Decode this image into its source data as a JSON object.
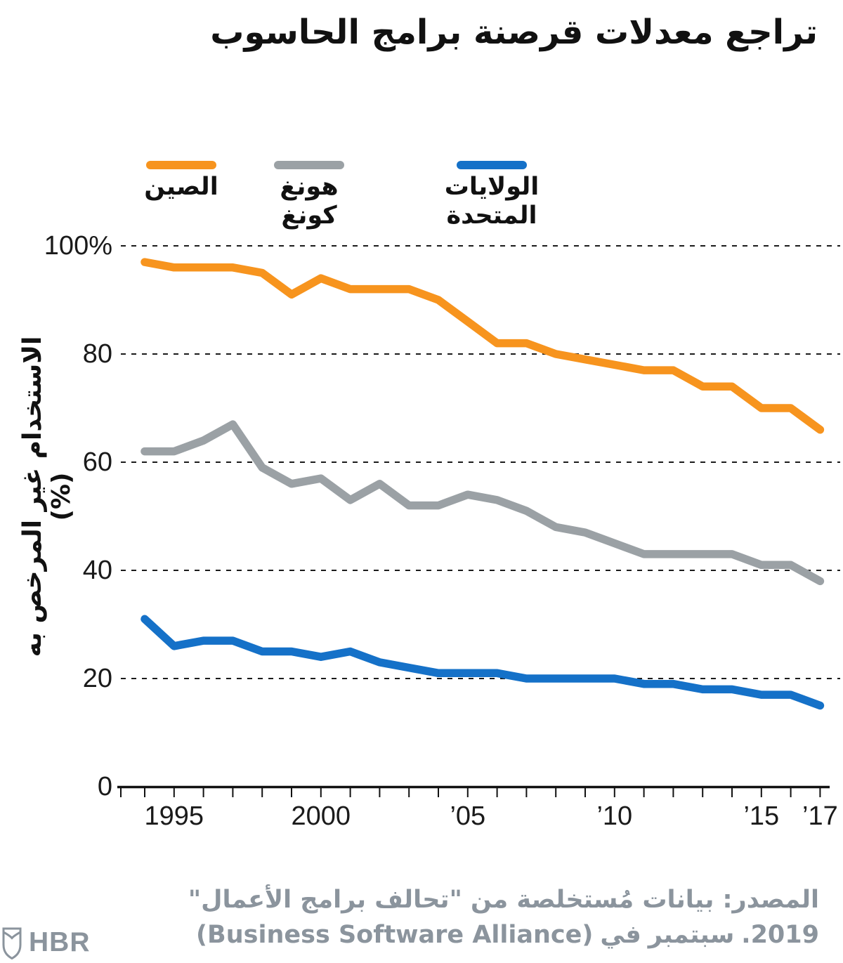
{
  "title": "تراجع معدلات قرصنة برامج الحاسوب",
  "legend": {
    "items": [
      {
        "id": "china",
        "label": "الصين",
        "color": "#F7941E"
      },
      {
        "id": "hong-kong",
        "label": "هونغ كونغ",
        "color": "#9BA1A5"
      },
      {
        "id": "united-states",
        "label": "الولايات المتحدة",
        "color": "#1571C8"
      }
    ]
  },
  "y_axis": {
    "title": "الاستخدام غير المرخص به (%)",
    "ticks": [
      {
        "value": 100,
        "label": "100%"
      },
      {
        "value": 80,
        "label": "80"
      },
      {
        "value": 60,
        "label": "60"
      },
      {
        "value": 40,
        "label": "40"
      },
      {
        "value": 20,
        "label": "20"
      },
      {
        "value": 0,
        "label": "0"
      }
    ]
  },
  "x_axis": {
    "ticks": [
      {
        "year": 1995,
        "label": "1995"
      },
      {
        "year": 2000,
        "label": "2000"
      },
      {
        "year": 2005,
        "label": "’05"
      },
      {
        "year": 2010,
        "label": "’10"
      },
      {
        "year": 2015,
        "label": "’15"
      },
      {
        "year": 2017,
        "label": "’17"
      }
    ]
  },
  "source": {
    "line1": "المصدر: بيانات مُستخلصة من \"تحالف برامج الأعمال\"",
    "line2": "(Business Software Alliance) في سبتمبر 2019.",
    "line2_parts": [
      "(Business Software Alliance)",
      "في",
      "سبتمبر",
      "2019."
    ]
  },
  "footer": {
    "logo_text": "HBR"
  },
  "colors": {
    "grid": "#1B1B1B",
    "axis": "#111111",
    "tick_text": "#1A1A1A",
    "china": "#F7941E",
    "hong_kong": "#9BA1A5",
    "united_states": "#1571C8",
    "source_text": "#8B949D"
  },
  "chart_data": {
    "type": "line",
    "title": "تراجع معدلات قرصنة برامج الحاسوب",
    "ylabel": "الاستخدام غير المرخص به (%)",
    "ylim": [
      0,
      100
    ],
    "grid": "dashed-horizontal",
    "legend_position": "top",
    "x": [
      1994,
      1995,
      1996,
      1997,
      1998,
      1999,
      2000,
      2001,
      2002,
      2003,
      2004,
      2005,
      2006,
      2007,
      2008,
      2009,
      2010,
      2011,
      2012,
      2013,
      2014,
      2015,
      2016,
      2017
    ],
    "series": [
      {
        "name": "الصين",
        "name_en": "China",
        "color": "#F7941E",
        "values": [
          97,
          96,
          96,
          96,
          95,
          91,
          94,
          92,
          92,
          92,
          90,
          86,
          82,
          82,
          80,
          79,
          78,
          77,
          77,
          74,
          74,
          70,
          70,
          66
        ]
      },
      {
        "name": "هونغ كونغ",
        "name_en": "Hong Kong",
        "color": "#9BA1A5",
        "values": [
          62,
          62,
          64,
          67,
          59,
          56,
          57,
          53,
          56,
          52,
          52,
          54,
          53,
          51,
          48,
          47,
          45,
          43,
          43,
          43,
          43,
          41,
          41,
          38
        ]
      },
      {
        "name": "الولايات المتحدة",
        "name_en": "United States",
        "color": "#1571C8",
        "values": [
          31,
          26,
          27,
          27,
          25,
          25,
          24,
          25,
          23,
          22,
          21,
          21,
          21,
          20,
          20,
          20,
          20,
          19,
          19,
          18,
          18,
          17,
          17,
          15
        ]
      }
    ]
  }
}
